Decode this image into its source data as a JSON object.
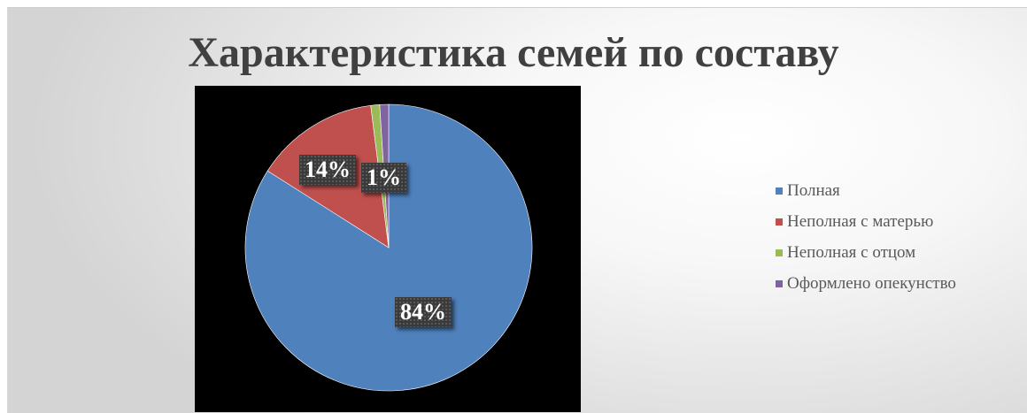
{
  "chart_data": {
    "type": "pie",
    "title": "Характеристика семей по составу",
    "categories": [
      "Полная",
      "Неполная с матерью",
      "Неполная с отцом",
      "Оформлено опекунство"
    ],
    "values": [
      84,
      14,
      1,
      1
    ],
    "data_labels": [
      "84%",
      "14%",
      "1%",
      ""
    ],
    "colors": [
      "#4f81bd",
      "#c0504d",
      "#9bbb59",
      "#8064a2"
    ],
    "legend_position": "right"
  }
}
